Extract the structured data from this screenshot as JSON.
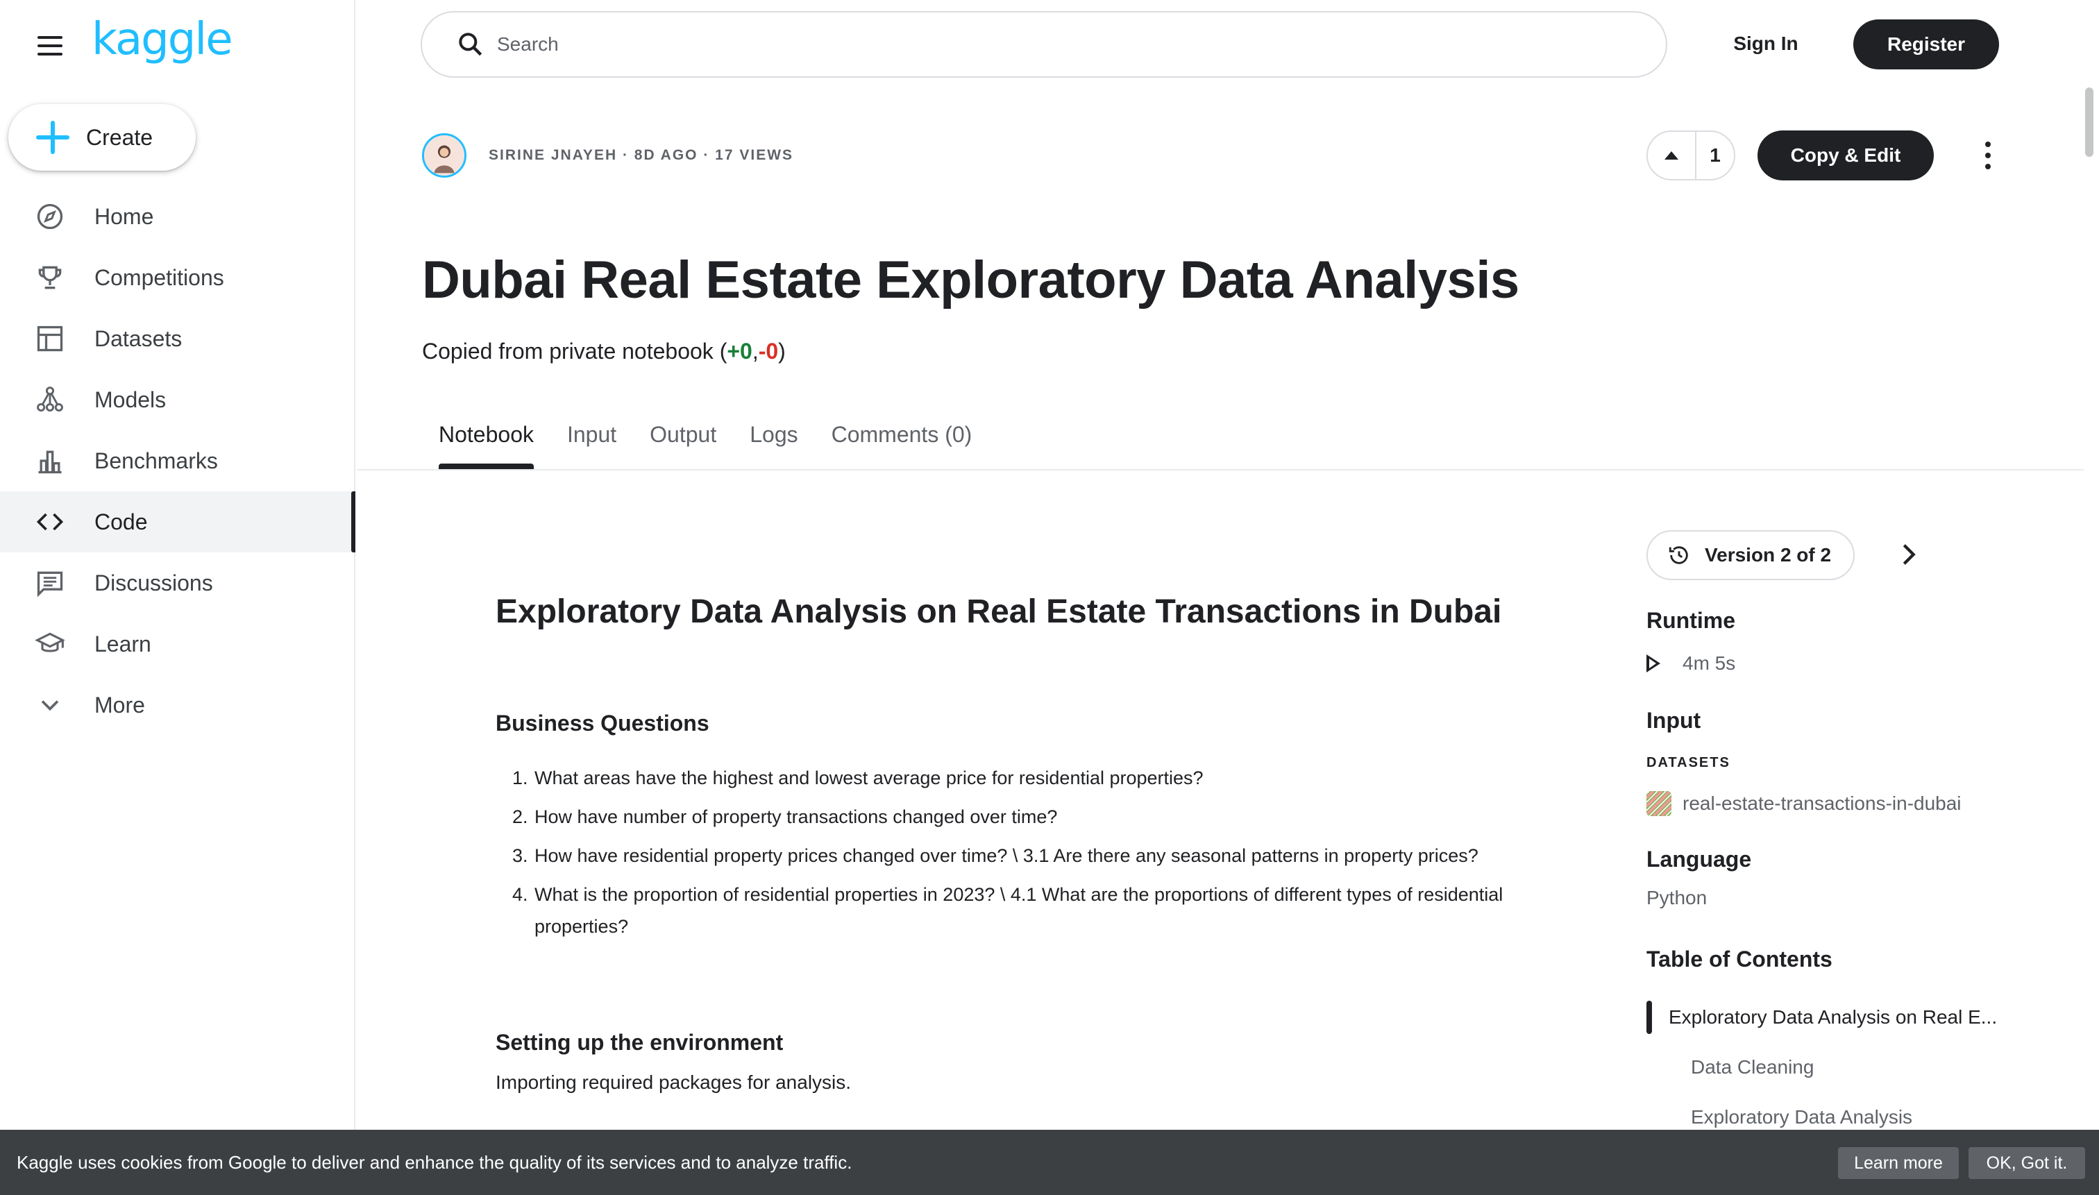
{
  "app": {
    "logo": "kaggle"
  },
  "sidebar": {
    "create_label": "Create",
    "items": [
      {
        "label": "Home",
        "icon": "compass-icon"
      },
      {
        "label": "Competitions",
        "icon": "trophy-icon"
      },
      {
        "label": "Datasets",
        "icon": "table-icon"
      },
      {
        "label": "Models",
        "icon": "models-icon"
      },
      {
        "label": "Benchmarks",
        "icon": "bar-chart-icon"
      },
      {
        "label": "Code",
        "icon": "code-icon",
        "active": true
      },
      {
        "label": "Discussions",
        "icon": "comments-icon"
      },
      {
        "label": "Learn",
        "icon": "school-icon"
      },
      {
        "label": "More",
        "icon": "chevron-down-icon"
      }
    ]
  },
  "header": {
    "search_placeholder": "Search",
    "signin_label": "Sign In",
    "register_label": "Register"
  },
  "notebook": {
    "meta": "SIRINE JNAYEH · 8D AGO · 17 VIEWS",
    "upvotes": "1",
    "copy_edit_label": "Copy & Edit",
    "title": "Dubai Real Estate Exploratory Data Analysis",
    "subtitle_prefix": "Copied from private notebook (",
    "subtitle_plus": "+0",
    "subtitle_sep": ",",
    "subtitle_minus": "-0",
    "subtitle_suffix": ")",
    "tabs": [
      "Notebook",
      "Input",
      "Output",
      "Logs",
      "Comments (0)"
    ],
    "active_tab": "Notebook"
  },
  "content": {
    "heading": "Exploratory Data Analysis on Real Estate Transactions in Dubai",
    "business_questions_title": "Business Questions",
    "questions": [
      {
        "num": "1.",
        "text": "What areas have the highest and lowest average price for residential properties?"
      },
      {
        "num": "2.",
        "text": "How have number of property transactions changed over time?"
      },
      {
        "num": "3.",
        "text": "How have residential property prices changed over time? \\ 3.1 Are there any seasonal patterns in property prices?"
      },
      {
        "num": "4.",
        "text": "What is the proportion of residential properties in 2023? \\ 4.1 What are the proportions of different types of residential properties?"
      }
    ],
    "setup_title": "Setting up the environment",
    "setup_text": "Importing required packages for analysis."
  },
  "rail": {
    "version_label": "Version 2 of 2",
    "runtime_title": "Runtime",
    "runtime_value": "4m 5s",
    "input_title": "Input",
    "datasets_caption": "DATASETS",
    "dataset_name": "real-estate-transactions-in-dubai",
    "language_title": "Language",
    "language_value": "Python",
    "toc_title": "Table of Contents",
    "toc": [
      {
        "label": "Exploratory Data Analysis on Real E...",
        "active": true
      },
      {
        "label": "Data Cleaning"
      },
      {
        "label": "Exploratory Data Analysis"
      }
    ]
  },
  "cookie": {
    "text": "Kaggle uses cookies from Google to deliver and enhance the quality of its services and to analyze traffic.",
    "learn_more": "Learn more",
    "ok": "OK, Got it."
  },
  "colors": {
    "accent": "#20beff",
    "dark": "#202124",
    "positive": "#188038",
    "negative": "#d93025",
    "cookie_bg": "#3c4043"
  }
}
